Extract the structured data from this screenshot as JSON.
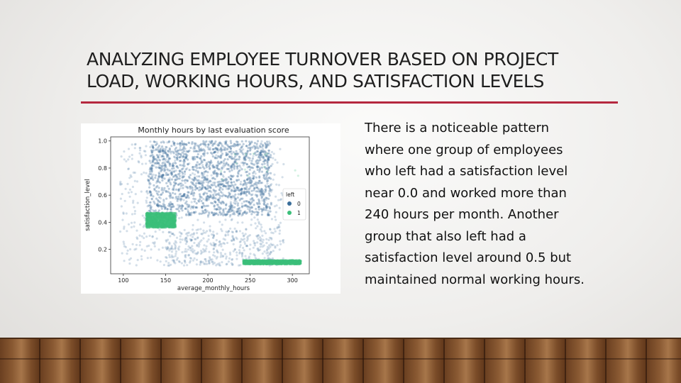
{
  "slide": {
    "title_lines": [
      "ANALYZING EMPLOYEE TURNOVER BASED ON PROJECT",
      "LOAD, WORKING HOURS, AND SATISFACTION LEVELS"
    ],
    "body_lines": [
      "There is a noticeable pattern",
      "where one group of employees",
      "who left had a satisfaction level",
      "near 0.0 and worked more than",
      "240 hours per month. Another",
      "group that also left had a",
      "satisfaction level around 0.5 but",
      "maintained normal working hours."
    ],
    "accent_color": "#b5283f"
  },
  "chart_data": {
    "type": "scatter",
    "title": "Monthly hours by last evaluation score",
    "xlabel": "average_monthly_hours",
    "ylabel": "satisfaction_level",
    "xlim": [
      85,
      320
    ],
    "ylim": [
      0.02,
      1.03
    ],
    "x_ticks": [
      100,
      150,
      200,
      250,
      300
    ],
    "y_ticks": [
      0.2,
      0.4,
      0.6,
      0.8,
      1.0
    ],
    "legend": {
      "title": "left",
      "placement": "center-right",
      "entries": [
        {
          "label": "0",
          "color": "#3b6e9a"
        },
        {
          "label": "1",
          "color": "#3cbf7a"
        }
      ]
    },
    "series": [
      {
        "name": "0",
        "color": "#3b6e9a",
        "clusters": [
          {
            "x_range": [
              130,
              275
            ],
            "y_range": [
              0.45,
              1.0
            ],
            "density": "high"
          },
          {
            "x_range": [
              96,
              290
            ],
            "y_range": [
              0.08,
              1.0
            ],
            "density": "low"
          },
          {
            "x_range": [
              150,
              280
            ],
            "y_range": [
              0.08,
              0.35
            ],
            "density": "medium"
          }
        ]
      },
      {
        "name": "1",
        "color": "#3cbf7a",
        "clusters": [
          {
            "x_range": [
              127,
              162
            ],
            "y_range": [
              0.36,
              0.47
            ],
            "density": "high"
          },
          {
            "x_range": [
              242,
              310
            ],
            "y_range": [
              0.09,
              0.12
            ],
            "density": "high"
          },
          {
            "x_range": [
              215,
              310
            ],
            "y_range": [
              0.7,
              0.92
            ],
            "density": "sparse"
          }
        ]
      }
    ]
  }
}
